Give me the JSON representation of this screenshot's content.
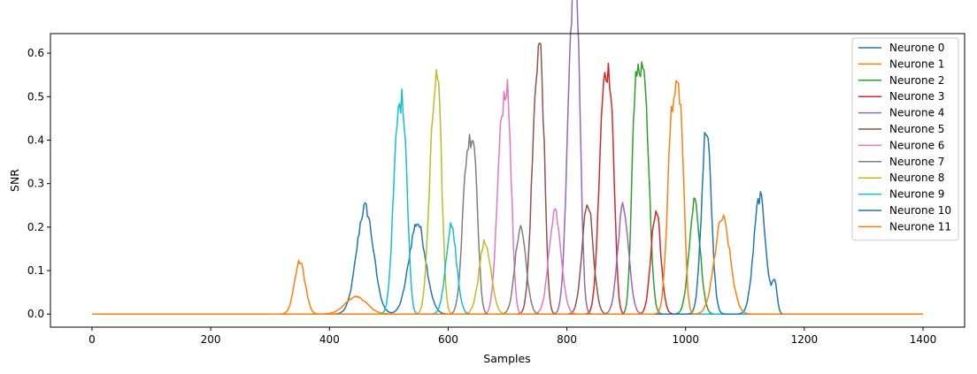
{
  "chart_data": {
    "type": "line",
    "title": "",
    "xlabel": "Samples",
    "ylabel": "SNR",
    "xlim": [
      -70,
      1470
    ],
    "ylim": [
      -0.03,
      0.645
    ],
    "xticks": [
      0,
      200,
      400,
      600,
      800,
      1000,
      1200,
      1400
    ],
    "xtick_labels": [
      "0",
      "200",
      "400",
      "600",
      "800",
      "1000",
      "1200",
      "1400"
    ],
    "yticks": [
      0.0,
      0.1,
      0.2,
      0.3,
      0.4,
      0.5,
      0.6
    ],
    "ytick_labels": [
      "0.0",
      "0.1",
      "0.2",
      "0.3",
      "0.4",
      "0.5",
      "0.6"
    ],
    "grid": false,
    "legend_position": "top-right",
    "x_range": [
      0,
      1400
    ],
    "series": [
      {
        "name": "Neurone 0",
        "color": "#1f77b4",
        "peaks": [
          [
            460,
            0.245,
            14
          ],
          [
            548,
            0.21,
            14
          ]
        ]
      },
      {
        "name": "Neurone 1",
        "color": "#ff7f0e",
        "peaks": [
          [
            350,
            0.12,
            9
          ],
          [
            445,
            0.04,
            18
          ]
        ]
      },
      {
        "name": "Neurone 2",
        "color": "#2ca02c",
        "peaks": [
          [
            930,
            0.55,
            8
          ],
          [
            915,
            0.44,
            6
          ],
          [
            1015,
            0.26,
            9
          ]
        ]
      },
      {
        "name": "Neurone 3",
        "color": "#d62728",
        "peaks": [
          [
            862,
            0.49,
            8
          ],
          [
            875,
            0.37,
            6
          ],
          [
            950,
            0.24,
            8
          ]
        ]
      },
      {
        "name": "Neurone 4",
        "color": "#9467bd",
        "peaks": [
          [
            808,
            0.6,
            8
          ],
          [
            818,
            0.42,
            6
          ],
          [
            895,
            0.25,
            9
          ]
        ]
      },
      {
        "name": "Neurone 5",
        "color": "#8c564b",
        "peaks": [
          [
            748,
            0.46,
            8
          ],
          [
            758,
            0.34,
            6
          ],
          [
            835,
            0.26,
            9
          ]
        ]
      },
      {
        "name": "Neurone 6",
        "color": "#e377c2",
        "peaks": [
          [
            690,
            0.41,
            8
          ],
          [
            702,
            0.34,
            6
          ],
          [
            780,
            0.24,
            10
          ]
        ]
      },
      {
        "name": "Neurone 7",
        "color": "#7f7f7f",
        "peaks": [
          [
            632,
            0.35,
            8
          ],
          [
            645,
            0.28,
            6
          ],
          [
            722,
            0.2,
            9
          ]
        ]
      },
      {
        "name": "Neurone 8",
        "color": "#bcbd22",
        "peaks": [
          [
            575,
            0.4,
            8
          ],
          [
            585,
            0.3,
            6
          ],
          [
            662,
            0.165,
            10
          ]
        ]
      },
      {
        "name": "Neurone 9",
        "color": "#17becf",
        "peaks": [
          [
            515,
            0.41,
            8
          ],
          [
            527,
            0.3,
            6
          ],
          [
            605,
            0.2,
            9
          ]
        ]
      },
      {
        "name": "Neurone 10",
        "color": "#1f77b4",
        "peaks": [
          [
            1035,
            0.43,
            8
          ],
          [
            1125,
            0.27,
            10
          ],
          [
            1150,
            0.07,
            4
          ]
        ]
      },
      {
        "name": "Neurone 11",
        "color": "#ff7f0e",
        "peaks": [
          [
            978,
            0.47,
            8
          ],
          [
            992,
            0.37,
            6
          ],
          [
            1062,
            0.22,
            13
          ]
        ]
      }
    ]
  }
}
